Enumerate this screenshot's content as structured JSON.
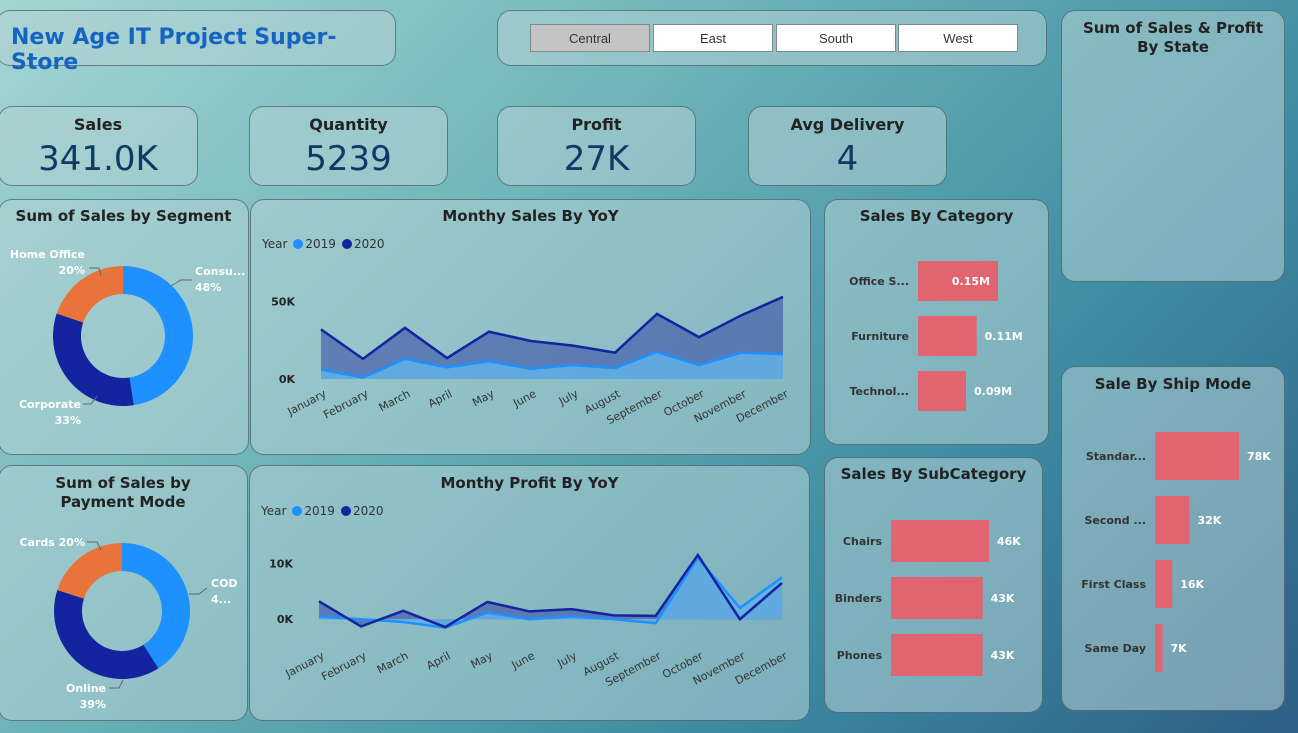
{
  "header": {
    "title": "New Age IT Project Super-Store"
  },
  "slicer": {
    "options": [
      "Central",
      "East",
      "South",
      "West"
    ],
    "selected": "Central"
  },
  "kpis": {
    "sales": {
      "label": "Sales",
      "value": "341.0K"
    },
    "quantity": {
      "label": "Quantity",
      "value": "5239"
    },
    "profit": {
      "label": "Profit",
      "value": "27K"
    },
    "avg_delivery": {
      "label": "Avg Delivery",
      "value": "4"
    }
  },
  "state_map": {
    "title": "Sum of Sales & Profit By State"
  },
  "colors": {
    "y2019": "#1e90ff",
    "y2020": "#14239e",
    "segA": "#1e90ff",
    "segB": "#14239e",
    "segC": "#e8743b",
    "bar": "#e06570"
  },
  "chart_data": [
    {
      "id": "segment",
      "type": "pie",
      "title": "Sum of Sales by Segment",
      "slices": [
        {
          "label": "Consu...",
          "pct_label": "48%",
          "value": 48
        },
        {
          "label": "Corporate",
          "pct_label": "33%",
          "value": 33
        },
        {
          "label": "Home Office",
          "pct_label": "20%",
          "value": 20
        }
      ]
    },
    {
      "id": "payment",
      "type": "pie",
      "title": "Sum of Sales by Payment Mode",
      "slices": [
        {
          "label": "COD",
          "pct_label": "4...",
          "value": 41
        },
        {
          "label": "Online",
          "pct_label": "39%",
          "value": 39
        },
        {
          "label": "Cards",
          "pct_label": "20%",
          "value": 20
        }
      ]
    },
    {
      "id": "sales_yoy",
      "type": "area",
      "title": "Monthy Sales By YoY",
      "legend_title": "Year",
      "x": [
        "January",
        "February",
        "March",
        "April",
        "May",
        "June",
        "July",
        "August",
        "September",
        "October",
        "November",
        "December"
      ],
      "series": [
        {
          "name": "2019",
          "values": [
            6000,
            1000,
            13000,
            7500,
            11500,
            6500,
            9000,
            7000,
            17500,
            9000,
            17000,
            16000
          ]
        },
        {
          "name": "2020",
          "values": [
            32000,
            13000,
            33000,
            13500,
            30500,
            24500,
            21500,
            17000,
            42000,
            27000,
            41000,
            53000
          ]
        }
      ],
      "y_ticks": [
        "0K",
        "50K"
      ],
      "ylim": [
        0,
        60000
      ]
    },
    {
      "id": "profit_yoy",
      "type": "area",
      "title": "Monthy Profit By YoY",
      "legend_title": "Year",
      "x": [
        "January",
        "February",
        "March",
        "April",
        "May",
        "June",
        "July",
        "August",
        "September",
        "October",
        "November",
        "December"
      ],
      "series": [
        {
          "name": "2019",
          "values": [
            500,
            0,
            -500,
            -1500,
            1200,
            0,
            500,
            0,
            -700,
            11000,
            2000,
            7500
          ]
        },
        {
          "name": "2020",
          "values": [
            3200,
            -1300,
            1500,
            -1400,
            3100,
            1400,
            1800,
            700,
            600,
            11500,
            0,
            6500
          ]
        }
      ],
      "y_ticks": [
        "0K",
        "10K"
      ],
      "ylim": [
        -3000,
        14000
      ]
    },
    {
      "id": "category",
      "type": "bar",
      "title": "Sales By Category",
      "categories": [
        "Office S...",
        "Furniture",
        "Technol..."
      ],
      "values": [
        0.15,
        0.11,
        0.09
      ],
      "labels": [
        "0.15M",
        "0.11M",
        "0.09M"
      ]
    },
    {
      "id": "subcategory",
      "type": "bar",
      "title": "Sales By SubCategory",
      "categories": [
        "Chairs",
        "Binders",
        "Phones"
      ],
      "values": [
        46,
        43,
        43
      ],
      "labels": [
        "46K",
        "43K",
        "43K"
      ]
    },
    {
      "id": "shipmode",
      "type": "bar",
      "title": "Sale By Ship Mode",
      "categories": [
        "Standar...",
        "Second ...",
        "First Class",
        "Same Day"
      ],
      "values": [
        78,
        32,
        16,
        7
      ],
      "labels": [
        "78K",
        "32K",
        "16K",
        "7K"
      ]
    }
  ]
}
